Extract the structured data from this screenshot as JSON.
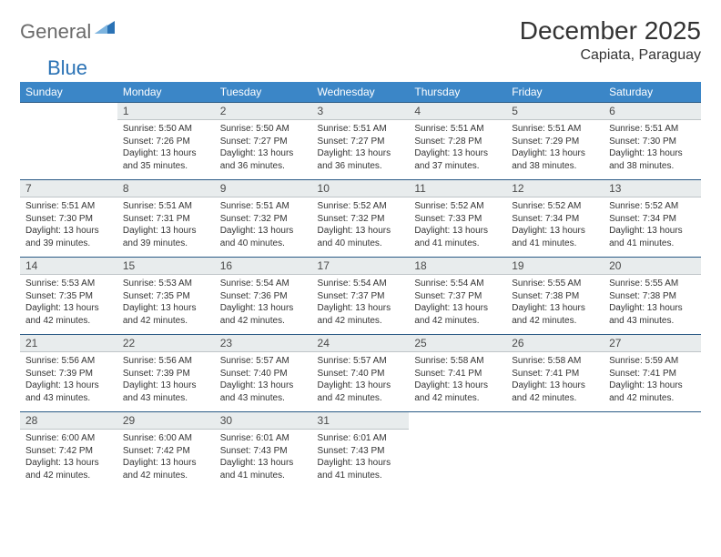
{
  "brand": {
    "part1": "General",
    "part2": "Blue"
  },
  "title": "December 2025",
  "location": "Capiata, Paraguay",
  "colors": {
    "header_bg": "#3b86c7",
    "header_text": "#ffffff",
    "daynum_bg": "#e8eced",
    "divider": "#2a5a85",
    "page_bg": "#ffffff",
    "logo_gray": "#6a6a6a",
    "logo_blue": "#2a72b5"
  },
  "dow": [
    "Sunday",
    "Monday",
    "Tuesday",
    "Wednesday",
    "Thursday",
    "Friday",
    "Saturday"
  ],
  "layout": {
    "weeks": 5,
    "first_weekday_index": 1,
    "days_in_month": 31,
    "cell_font_size_pt": 7.5,
    "dow_font_size_pt": 9
  },
  "weeks": [
    {
      "nums": [
        "",
        "1",
        "2",
        "3",
        "4",
        "5",
        "6"
      ],
      "cells": [
        null,
        {
          "sunrise": "5:50 AM",
          "sunset": "7:26 PM",
          "daylight": "13 hours and 35 minutes."
        },
        {
          "sunrise": "5:50 AM",
          "sunset": "7:27 PM",
          "daylight": "13 hours and 36 minutes."
        },
        {
          "sunrise": "5:51 AM",
          "sunset": "7:27 PM",
          "daylight": "13 hours and 36 minutes."
        },
        {
          "sunrise": "5:51 AM",
          "sunset": "7:28 PM",
          "daylight": "13 hours and 37 minutes."
        },
        {
          "sunrise": "5:51 AM",
          "sunset": "7:29 PM",
          "daylight": "13 hours and 38 minutes."
        },
        {
          "sunrise": "5:51 AM",
          "sunset": "7:30 PM",
          "daylight": "13 hours and 38 minutes."
        }
      ]
    },
    {
      "nums": [
        "7",
        "8",
        "9",
        "10",
        "11",
        "12",
        "13"
      ],
      "cells": [
        {
          "sunrise": "5:51 AM",
          "sunset": "7:30 PM",
          "daylight": "13 hours and 39 minutes."
        },
        {
          "sunrise": "5:51 AM",
          "sunset": "7:31 PM",
          "daylight": "13 hours and 39 minutes."
        },
        {
          "sunrise": "5:51 AM",
          "sunset": "7:32 PM",
          "daylight": "13 hours and 40 minutes."
        },
        {
          "sunrise": "5:52 AM",
          "sunset": "7:32 PM",
          "daylight": "13 hours and 40 minutes."
        },
        {
          "sunrise": "5:52 AM",
          "sunset": "7:33 PM",
          "daylight": "13 hours and 41 minutes."
        },
        {
          "sunrise": "5:52 AM",
          "sunset": "7:34 PM",
          "daylight": "13 hours and 41 minutes."
        },
        {
          "sunrise": "5:52 AM",
          "sunset": "7:34 PM",
          "daylight": "13 hours and 41 minutes."
        }
      ]
    },
    {
      "nums": [
        "14",
        "15",
        "16",
        "17",
        "18",
        "19",
        "20"
      ],
      "cells": [
        {
          "sunrise": "5:53 AM",
          "sunset": "7:35 PM",
          "daylight": "13 hours and 42 minutes."
        },
        {
          "sunrise": "5:53 AM",
          "sunset": "7:35 PM",
          "daylight": "13 hours and 42 minutes."
        },
        {
          "sunrise": "5:54 AM",
          "sunset": "7:36 PM",
          "daylight": "13 hours and 42 minutes."
        },
        {
          "sunrise": "5:54 AM",
          "sunset": "7:37 PM",
          "daylight": "13 hours and 42 minutes."
        },
        {
          "sunrise": "5:54 AM",
          "sunset": "7:37 PM",
          "daylight": "13 hours and 42 minutes."
        },
        {
          "sunrise": "5:55 AM",
          "sunset": "7:38 PM",
          "daylight": "13 hours and 42 minutes."
        },
        {
          "sunrise": "5:55 AM",
          "sunset": "7:38 PM",
          "daylight": "13 hours and 43 minutes."
        }
      ]
    },
    {
      "nums": [
        "21",
        "22",
        "23",
        "24",
        "25",
        "26",
        "27"
      ],
      "cells": [
        {
          "sunrise": "5:56 AM",
          "sunset": "7:39 PM",
          "daylight": "13 hours and 43 minutes."
        },
        {
          "sunrise": "5:56 AM",
          "sunset": "7:39 PM",
          "daylight": "13 hours and 43 minutes."
        },
        {
          "sunrise": "5:57 AM",
          "sunset": "7:40 PM",
          "daylight": "13 hours and 43 minutes."
        },
        {
          "sunrise": "5:57 AM",
          "sunset": "7:40 PM",
          "daylight": "13 hours and 42 minutes."
        },
        {
          "sunrise": "5:58 AM",
          "sunset": "7:41 PM",
          "daylight": "13 hours and 42 minutes."
        },
        {
          "sunrise": "5:58 AM",
          "sunset": "7:41 PM",
          "daylight": "13 hours and 42 minutes."
        },
        {
          "sunrise": "5:59 AM",
          "sunset": "7:41 PM",
          "daylight": "13 hours and 42 minutes."
        }
      ]
    },
    {
      "nums": [
        "28",
        "29",
        "30",
        "31",
        "",
        "",
        ""
      ],
      "cells": [
        {
          "sunrise": "6:00 AM",
          "sunset": "7:42 PM",
          "daylight": "13 hours and 42 minutes."
        },
        {
          "sunrise": "6:00 AM",
          "sunset": "7:42 PM",
          "daylight": "13 hours and 42 minutes."
        },
        {
          "sunrise": "6:01 AM",
          "sunset": "7:43 PM",
          "daylight": "13 hours and 41 minutes."
        },
        {
          "sunrise": "6:01 AM",
          "sunset": "7:43 PM",
          "daylight": "13 hours and 41 minutes."
        },
        null,
        null,
        null
      ]
    }
  ],
  "labels": {
    "sunrise": "Sunrise:",
    "sunset": "Sunset:",
    "daylight": "Daylight:"
  }
}
